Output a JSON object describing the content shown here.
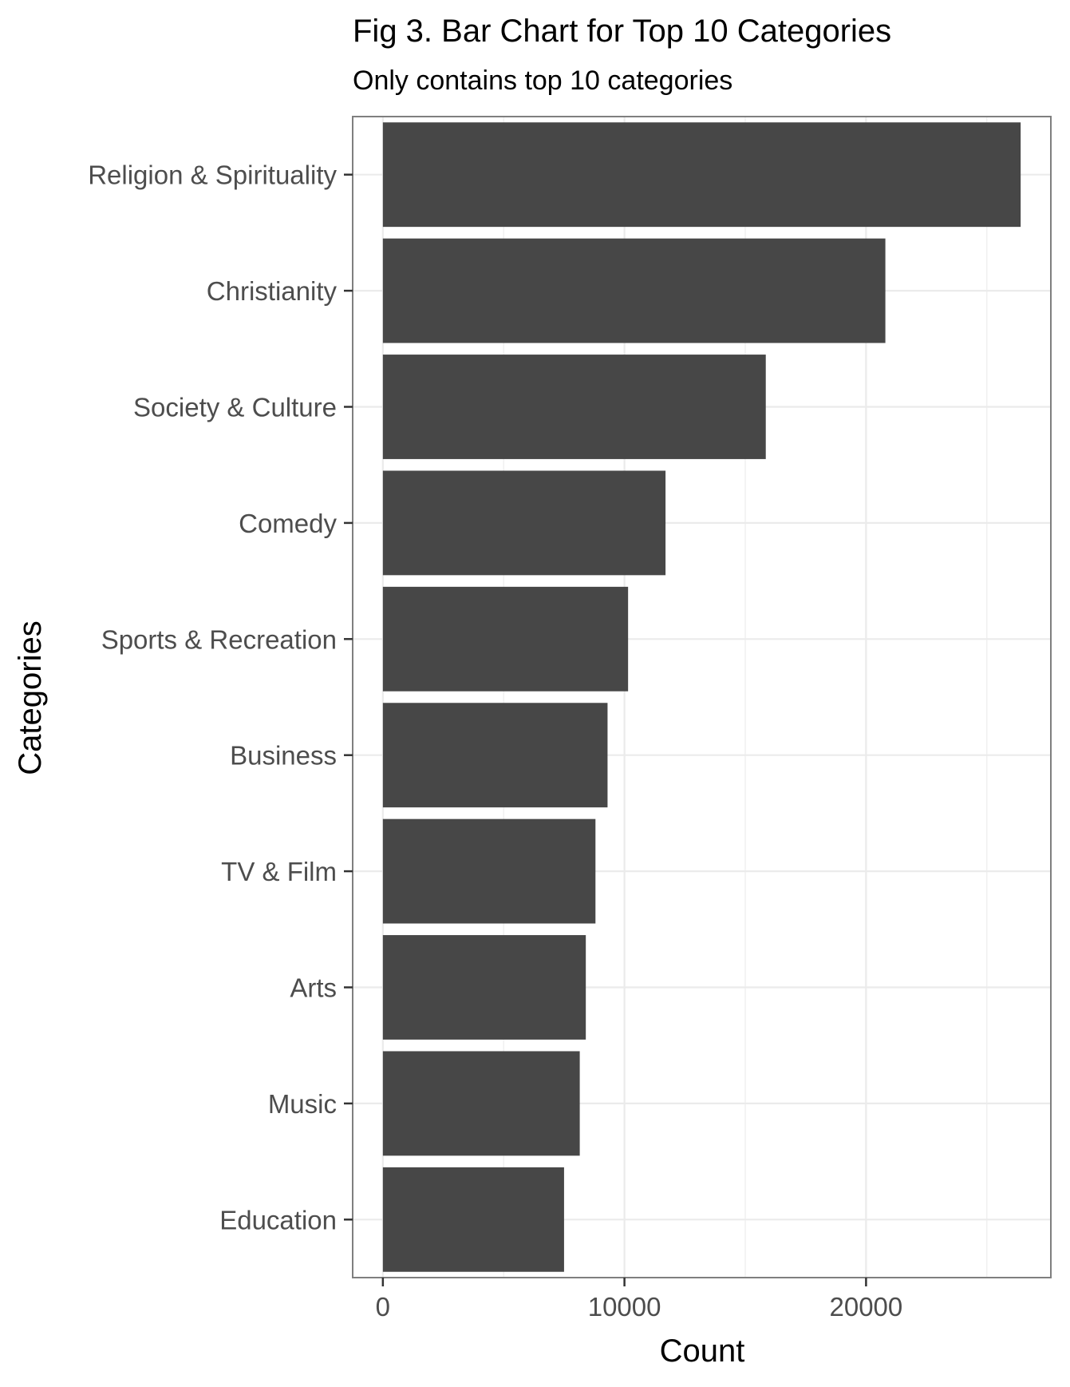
{
  "chart_data": {
    "type": "bar",
    "orientation": "horizontal",
    "title": "Fig 3. Bar Chart for Top 10 Categories",
    "subtitle": "Only contains top 10 categories",
    "xlabel": "Count",
    "ylabel": "Categories",
    "categories": [
      "Religion & Spirituality",
      "Christianity",
      "Society & Culture",
      "Comedy",
      "Sports & Recreation",
      "Business",
      "TV & Film",
      "Arts",
      "Music",
      "Education"
    ],
    "values": [
      26400,
      20800,
      15850,
      11700,
      10150,
      9300,
      8800,
      8400,
      8150,
      7500
    ],
    "xlim": [
      -1250,
      27650
    ],
    "xticks": [
      0,
      10000,
      20000
    ],
    "xtick_labels": [
      "0",
      "10000",
      "20000"
    ],
    "grid": true,
    "bar_color": "#474747",
    "grid_color": "#ebebeb",
    "panel_border_color": "#7f7f7f"
  }
}
